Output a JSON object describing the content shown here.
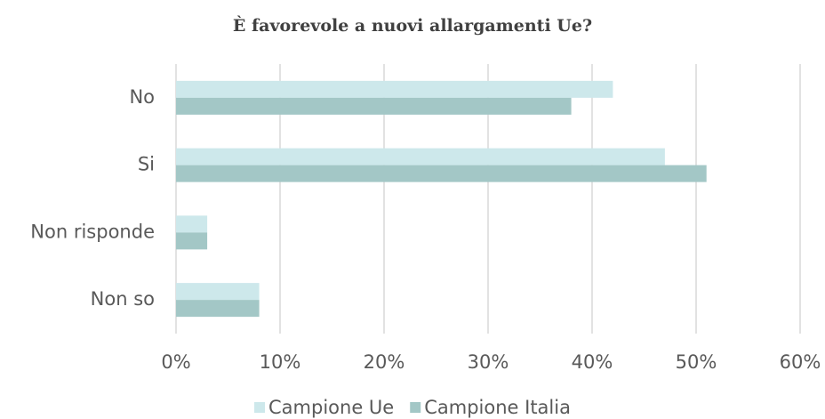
{
  "chart_data": {
    "type": "bar",
    "orientation": "horizontal",
    "title": "È favorevole a nuovi allargamenti Ue?",
    "categories": [
      "No",
      "Si",
      "Non risponde",
      "Non so"
    ],
    "series": [
      {
        "name": "Campione Ue",
        "color": "#cde8eb",
        "values": [
          42,
          47,
          3,
          8
        ]
      },
      {
        "name": "Campione Italia",
        "color": "#a3c7c6",
        "values": [
          38,
          51,
          3,
          8
        ]
      }
    ],
    "xlim": [
      0,
      60
    ],
    "xticks": [
      {
        "value": 0,
        "label": "0%"
      },
      {
        "value": 10,
        "label": "10%"
      },
      {
        "value": 20,
        "label": "20%"
      },
      {
        "value": 30,
        "label": "30%"
      },
      {
        "value": 40,
        "label": "40%"
      },
      {
        "value": 50,
        "label": "50%"
      },
      {
        "value": 60,
        "label": "60%"
      }
    ],
    "grid": true,
    "legend": "bottom"
  }
}
